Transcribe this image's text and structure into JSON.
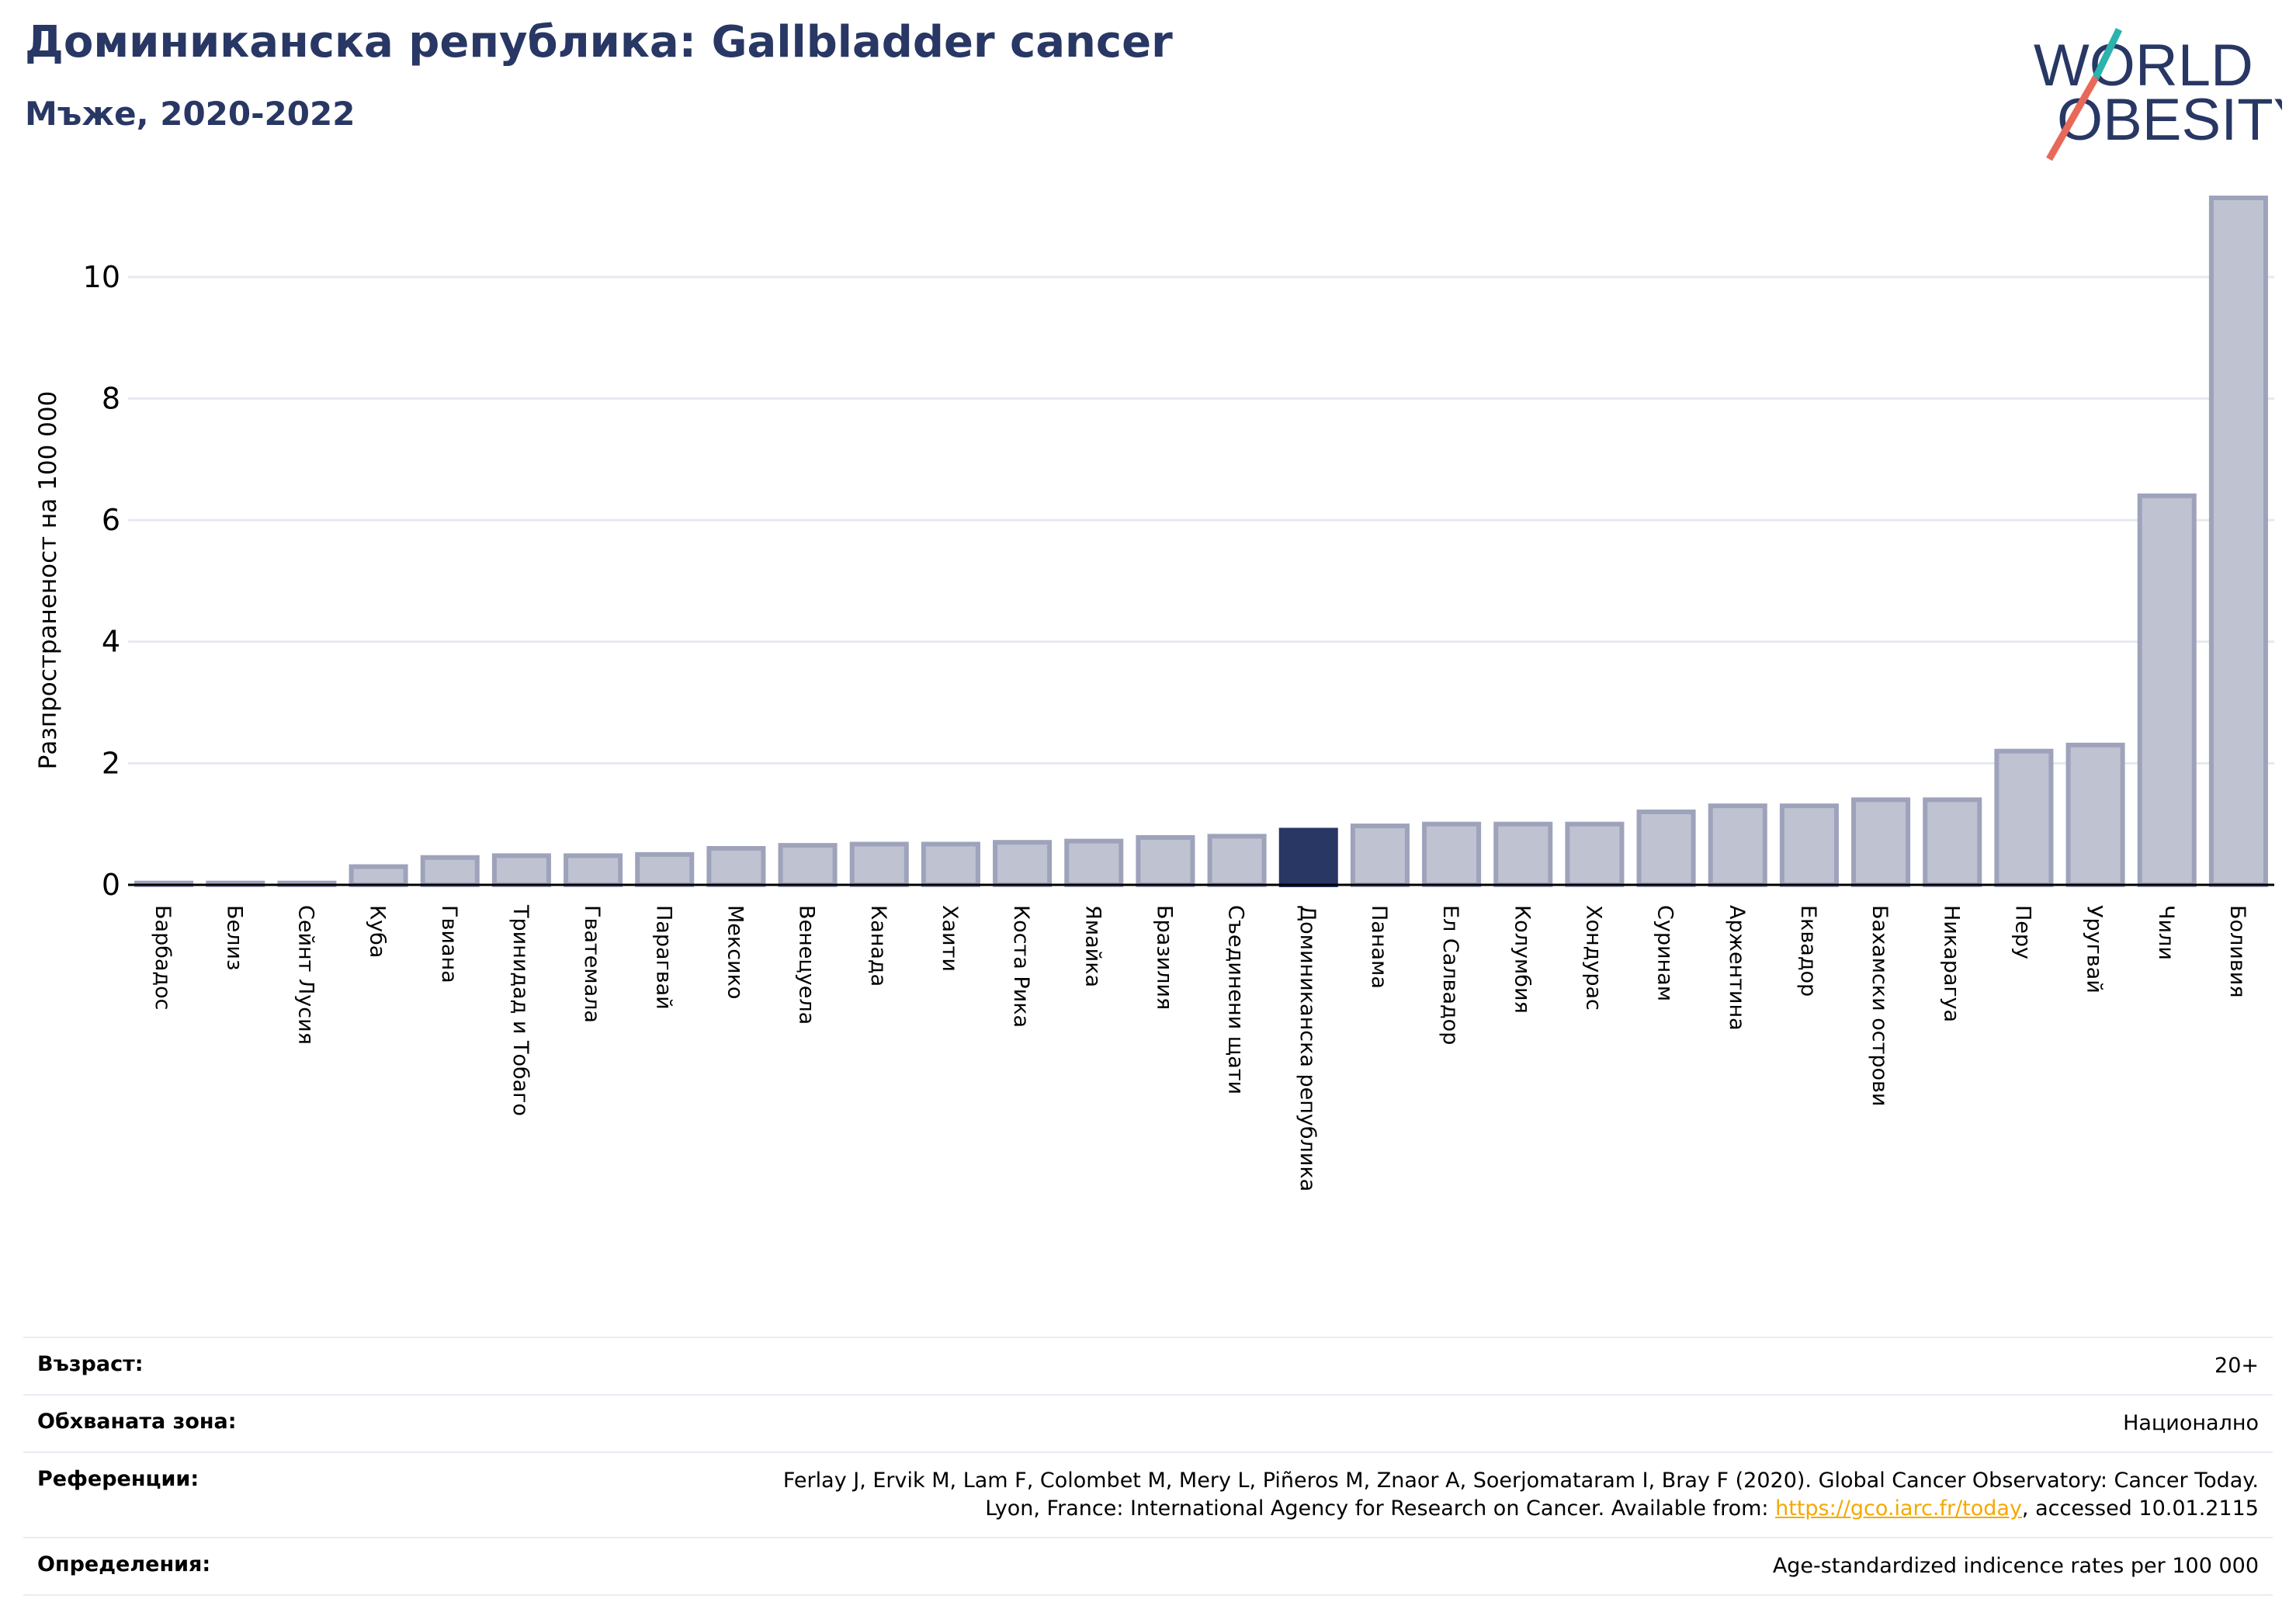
{
  "header": {
    "title": "Доминиканска република: Gallbladder cancer",
    "subtitle": "Мъже, 2020-2022"
  },
  "logo": {
    "line1": "WORLD",
    "line2": "OBESITY"
  },
  "chart_data": {
    "type": "bar",
    "ylabel": "Разпространеност  на 100 000",
    "ylim": [
      0,
      11.3
    ],
    "yticks": [
      0,
      2,
      4,
      6,
      8,
      10
    ],
    "grid": true,
    "highlight": "Доминиканска република",
    "categories": [
      "Барбадос",
      "Белиз",
      "Сейнт Лусия",
      "Куба",
      "Гвиана",
      "Тринидад и Тобаго",
      "Гватемала",
      "Парагвай",
      "Мексико",
      "Венецуела",
      "Канада",
      "Хаити",
      "Коста Рика",
      "Ямайка",
      "Бразилия",
      "Съединени щати",
      "Доминиканска република",
      "Панама",
      "Ел Салвадор",
      "Колумбия",
      "Хондурас",
      "Суринам",
      "Аржентина",
      "Еквадор",
      "Бахамски острови",
      "Никарагуа",
      "Перу",
      "Уругвай",
      "Чили",
      "Боливия"
    ],
    "values": [
      0.03,
      0.03,
      0.03,
      0.3,
      0.45,
      0.48,
      0.48,
      0.5,
      0.6,
      0.65,
      0.67,
      0.67,
      0.7,
      0.72,
      0.78,
      0.8,
      0.9,
      0.97,
      1.0,
      1.0,
      1.0,
      1.2,
      1.3,
      1.3,
      1.4,
      1.4,
      2.2,
      2.3,
      6.4,
      11.3
    ],
    "colors": {
      "bar": "#bfc2d1",
      "bar_edge": "#9ea3bb",
      "highlight": "#283764",
      "grid": "#e6e9f0",
      "axis": "#000000"
    }
  },
  "meta": {
    "age_label": "Възраст:",
    "age_value": "20+",
    "coverage_label": "Обхваната зона:",
    "coverage_value": "Национално",
    "references_label": "Референции:",
    "references_line1": "Ferlay J, Ervik M, Lam F, Colombet M, Mery L, Piñeros M, Znaor A, Soerjomataram I, Bray F (2020). Global Cancer Observatory: Cancer Today.",
    "references_line2_pre": "Lyon, France: International Agency for Research on Cancer. Available from: ",
    "references_link": "https://gco.iarc.fr/today",
    "references_line2_post": ", accessed 10.01.2115",
    "definitions_label": "Определения:",
    "definitions_value": "Age-standardized indicence rates per 100 000"
  }
}
